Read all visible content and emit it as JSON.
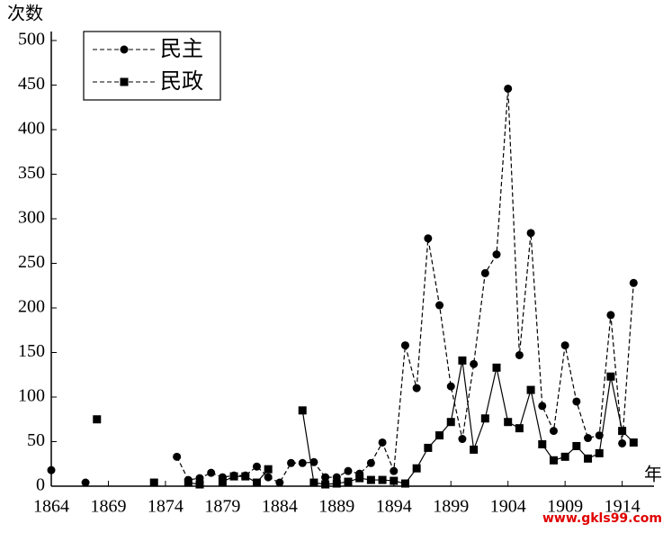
{
  "chart_data": {
    "type": "line",
    "y_label": "次数",
    "x_label": "年",
    "watermark": "www.gkls99.com",
    "xlim": [
      1864,
      1916
    ],
    "ylim": [
      0,
      500
    ],
    "xticks": [
      1864,
      1869,
      1874,
      1879,
      1884,
      1889,
      1894,
      1899,
      1904,
      1909,
      1914
    ],
    "yticks": [
      0,
      50,
      100,
      150,
      200,
      250,
      300,
      350,
      400,
      450,
      500
    ],
    "legend": "upper-left",
    "series": [
      {
        "name": "民主",
        "color": "#000000",
        "marker": "circle",
        "dash": true,
        "x": [
          1864,
          1865,
          1867,
          1868,
          1875,
          1876,
          1877,
          1878,
          1879,
          1880,
          1881,
          1882,
          1883,
          1884,
          1885,
          1886,
          1887,
          1888,
          1889,
          1890,
          1891,
          1892,
          1893,
          1894,
          1895,
          1896,
          1897,
          1898,
          1899,
          1900,
          1901,
          1902,
          1903,
          1904,
          1905,
          1906,
          1907,
          1908,
          1909,
          1910,
          1911,
          1912,
          1913,
          1914,
          1915
        ],
        "values": [
          18,
          null,
          4,
          null,
          33,
          7,
          9,
          15,
          10,
          12,
          12,
          22,
          10,
          4,
          26,
          26,
          27,
          10,
          10,
          17,
          14,
          26,
          49,
          17,
          158,
          110,
          278,
          203,
          112,
          53,
          137,
          239,
          260,
          446,
          147,
          284,
          90,
          62,
          158,
          95,
          54,
          57,
          192,
          48,
          228
        ]
      },
      {
        "name": "民政",
        "color": "#000000",
        "marker": "square",
        "dash": false,
        "x": [
          1868,
          1870,
          1873,
          1874,
          1876,
          1877,
          1878,
          1879,
          1880,
          1881,
          1882,
          1883,
          1884,
          1886,
          1887,
          1888,
          1889,
          1890,
          1891,
          1892,
          1893,
          1894,
          1895,
          1896,
          1897,
          1898,
          1899,
          1900,
          1901,
          1902,
          1903,
          1904,
          1905,
          1906,
          1907,
          1908,
          1909,
          1910,
          1911,
          1912,
          1913,
          1914,
          1915
        ],
        "values": [
          75,
          null,
          4,
          null,
          4,
          2,
          null,
          5,
          11,
          11,
          4,
          19,
          null,
          85,
          4,
          2,
          3,
          5,
          9,
          7,
          7,
          6,
          3,
          20,
          43,
          57,
          72,
          141,
          41,
          76,
          133,
          72,
          65,
          108,
          47,
          29,
          33,
          45,
          31,
          37,
          123,
          62,
          49
        ]
      }
    ]
  }
}
